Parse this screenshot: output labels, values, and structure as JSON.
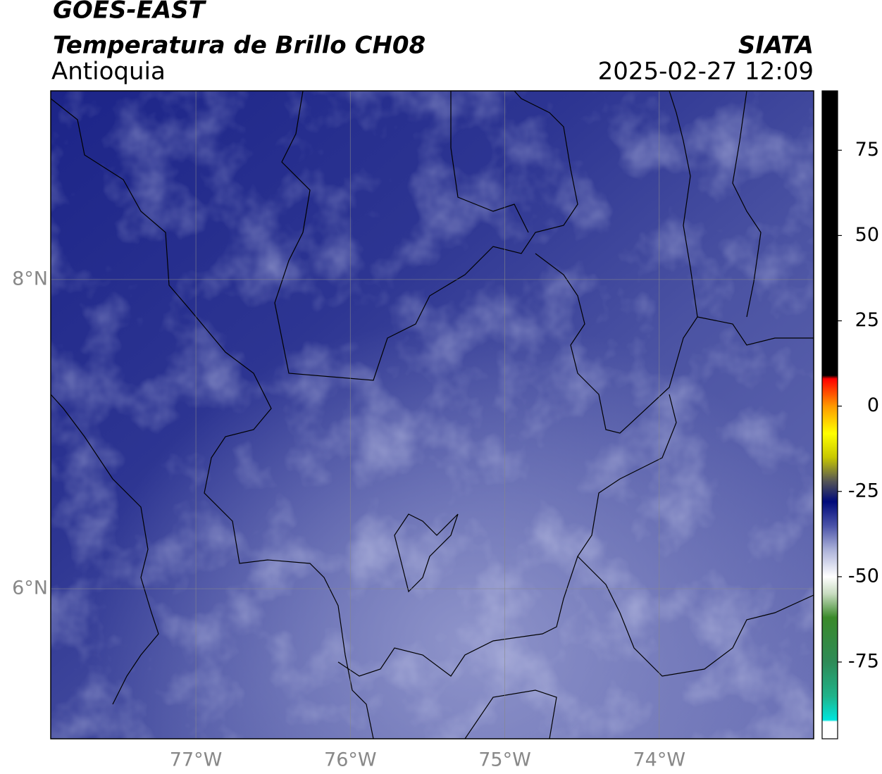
{
  "chart_data": {
    "type": "map",
    "title": "GOES-EAST",
    "subtitle": "Temperatura de Brillo CH08",
    "region": "Antioquia",
    "source": "SIATA",
    "timestamp": "2025-02-27 12:09",
    "xlim": [
      -77.94,
      -73.0
    ],
    "ylim": [
      5.03,
      9.22
    ],
    "xticks": [
      {
        "value": -77,
        "label": "77°W"
      },
      {
        "value": -76,
        "label": "76°W"
      },
      {
        "value": -75,
        "label": "75°W"
      },
      {
        "value": -74,
        "label": "74°W"
      }
    ],
    "yticks": [
      {
        "value": 6,
        "label": "6°N"
      },
      {
        "value": 8,
        "label": "8°N"
      }
    ],
    "grid": true,
    "colorbar": {
      "lim": [
        -97.5,
        92.4
      ],
      "ticks": [
        -75,
        -50,
        -25,
        0,
        25,
        50,
        75
      ],
      "colormap": [
        {
          "value": -97.5,
          "color": "#ffffff"
        },
        {
          "value": -92.5,
          "color": "#ffffff"
        },
        {
          "value": -92,
          "color": "#00e5dd"
        },
        {
          "value": -85,
          "color": "#1fb38a"
        },
        {
          "value": -75,
          "color": "#2e8b57"
        },
        {
          "value": -62,
          "color": "#3a8a2a"
        },
        {
          "value": -55,
          "color": "#c8dcc0"
        },
        {
          "value": -50,
          "color": "#ffffff"
        },
        {
          "value": -42,
          "color": "#aab0d8"
        },
        {
          "value": -35,
          "color": "#4a52a8"
        },
        {
          "value": -28,
          "color": "#000a7a"
        },
        {
          "value": -22,
          "color": "#555555"
        },
        {
          "value": -15,
          "color": "#c8c800"
        },
        {
          "value": -8,
          "color": "#ffff00"
        },
        {
          "value": 0,
          "color": "#ff9900"
        },
        {
          "value": 8,
          "color": "#ff0000"
        },
        {
          "value": 9,
          "color": "#000000"
        },
        {
          "value": 92.4,
          "color": "#000000"
        }
      ]
    }
  }
}
